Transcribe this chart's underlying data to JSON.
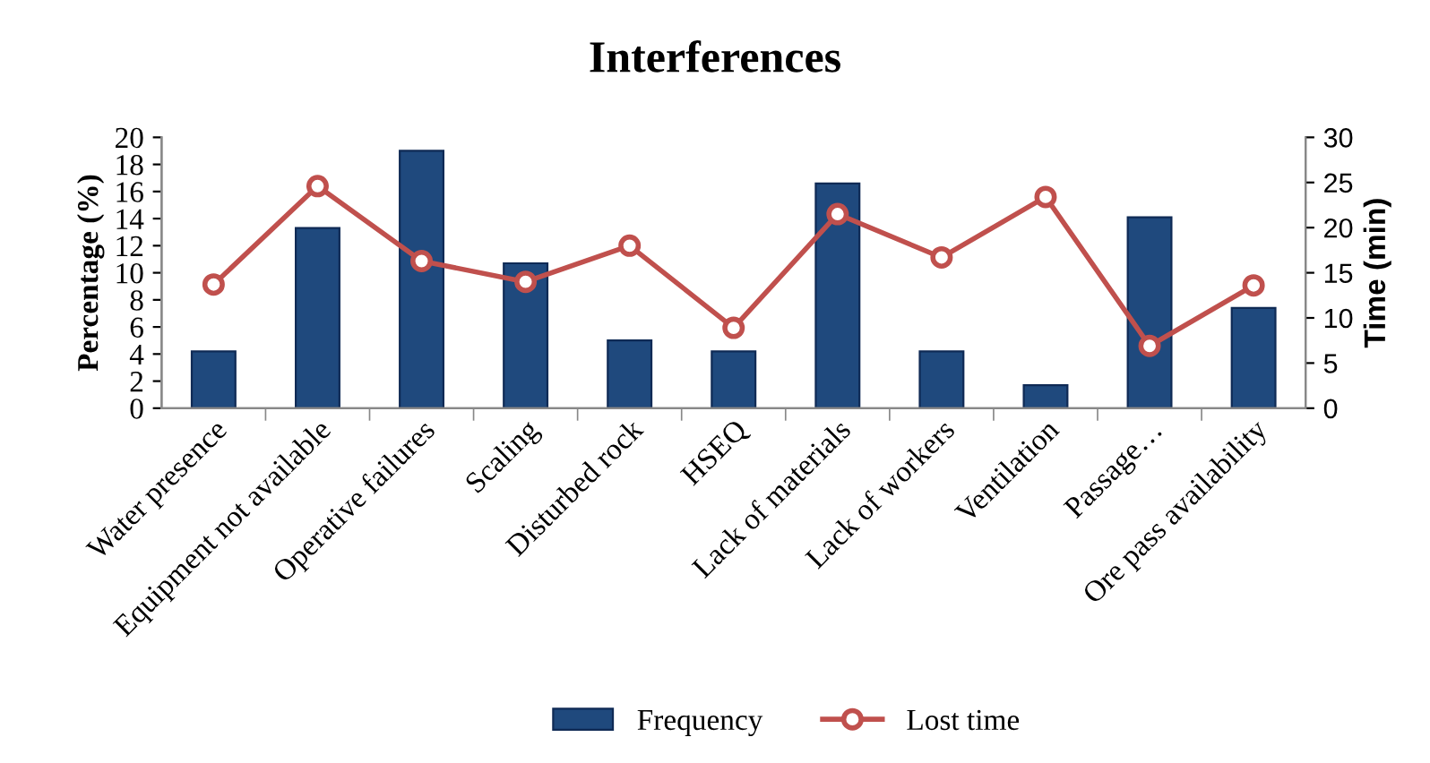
{
  "chart_data": {
    "type": "bar",
    "title": "Interferences",
    "ylabel": "Percentage (%)",
    "y2label": "Time (min)",
    "categories": [
      "Water presence",
      "Equipment not available",
      "Operative failures",
      "Scaling",
      "Disturbed rock",
      "HSEQ",
      "Lack of materials",
      "Lack of workers",
      "Ventilation",
      "Passage…",
      "Ore pass availability"
    ],
    "series": [
      {
        "name": "Frequency",
        "color": "#1f497d",
        "values": [
          4.2,
          13.3,
          19.0,
          10.7,
          5.0,
          4.2,
          16.6,
          4.2,
          1.7,
          14.1,
          7.4
        ]
      },
      {
        "name": "Lost time",
        "type": "line",
        "axis": "y2",
        "color": "#c0504d",
        "marker": "circle",
        "values": [
          13.7,
          24.6,
          16.3,
          14.0,
          18.0,
          8.9,
          21.5,
          16.7,
          23.4,
          6.9,
          13.6
        ]
      }
    ],
    "ylim": [
      0,
      20
    ],
    "yticks": [
      0,
      2,
      4,
      6,
      8,
      10,
      12,
      14,
      16,
      18,
      20
    ],
    "y2lim": [
      0,
      30
    ],
    "y2ticks": [
      0,
      5,
      10,
      15,
      20,
      25,
      30
    ],
    "grid": false,
    "legend": "bottom"
  }
}
